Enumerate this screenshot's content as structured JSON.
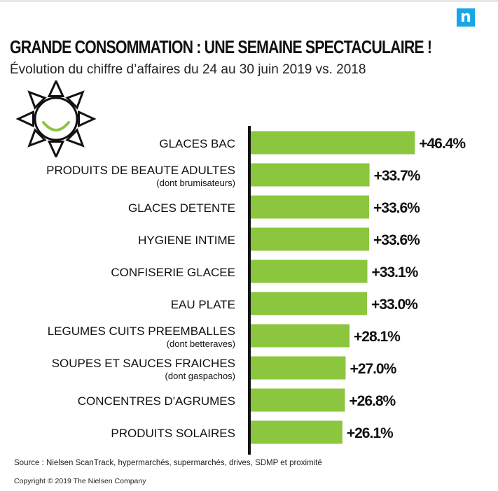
{
  "header": {
    "title": "GRANDE CONSOMMATION : UNE SEMAINE SPECTACULAIRE !",
    "subtitle": "Évolution du chiffre d’affaires du 24 au 30 juin 2019 vs. 2018",
    "logo_letter": "n"
  },
  "colors": {
    "bar": "#8cc63f",
    "axis": "#111111",
    "logo": "#1aa6e6",
    "smile": "#8cc63f"
  },
  "chart_data": {
    "type": "bar",
    "orientation": "horizontal",
    "categories": [
      "GLACES BAC",
      "PRODUITS DE BEAUTE ADULTES",
      "GLACES DETENTE",
      "HYGIENE INTIME",
      "CONFISERIE GLACEE",
      "EAU PLATE",
      "LEGUMES CUITS PREEMBALLES",
      "SOUPES ET SAUCES FRAICHES",
      "CONCENTRES D'AGRUMES",
      "PRODUITS SOLAIRES"
    ],
    "sublabels": [
      "",
      "(dont brumisateurs)",
      "",
      "",
      "",
      "",
      "(dont betteraves)",
      "(dont gaspachos)",
      "",
      ""
    ],
    "values": [
      46.4,
      33.7,
      33.6,
      33.6,
      33.1,
      33.0,
      28.1,
      27.0,
      26.8,
      26.1
    ],
    "value_labels": [
      "+46.4%",
      "+33.7%",
      "+33.6%",
      "+33.6%",
      "+33.1%",
      "+33.0%",
      "+28.1%",
      "+27.0%",
      "+26.8%",
      "+26.1%"
    ],
    "xlim": [
      0,
      55
    ],
    "title": "GRANDE CONSOMMATION : UNE SEMAINE SPECTACULAIRE !",
    "xlabel": "",
    "ylabel": "",
    "grid": false,
    "legend": "none"
  },
  "footer": {
    "source": "Source : Nielsen ScanTrack, hypermarchés, supermarchés, drives, SDMP et proximité",
    "copyright": "Copyright © 2019 The Nielsen Company"
  }
}
